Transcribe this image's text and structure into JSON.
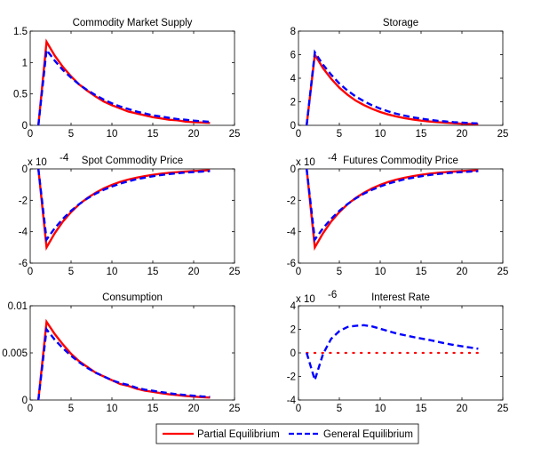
{
  "chart_data": [
    {
      "type": "line",
      "title": "Commodity Market Supply",
      "xlabel": "",
      "ylabel": "",
      "xlim": [
        0,
        25
      ],
      "ylim": [
        0,
        1.5
      ],
      "xticks": [
        "0",
        "5",
        "10",
        "15",
        "20",
        "25"
      ],
      "yticks": [
        "0",
        "0.5",
        "1",
        "1.5"
      ],
      "ytick_values": [
        0,
        0.5,
        1,
        1.5
      ],
      "exponent_label": "",
      "x": [
        1,
        2,
        3,
        4,
        5,
        6,
        7,
        8,
        9,
        10,
        11,
        12,
        13,
        14,
        15,
        16,
        17,
        18,
        19,
        20,
        21,
        22
      ],
      "series": [
        {
          "name": "Partial Equilibrium",
          "values": [
            0,
            1.33,
            1.11,
            0.93,
            0.78,
            0.65,
            0.55,
            0.46,
            0.38,
            0.32,
            0.27,
            0.22,
            0.19,
            0.16,
            0.13,
            0.11,
            0.09,
            0.08,
            0.06,
            0.05,
            0.045,
            0.038
          ]
        },
        {
          "name": "General Equilibrium",
          "values": [
            0,
            1.2,
            1.03,
            0.88,
            0.76,
            0.65,
            0.56,
            0.48,
            0.41,
            0.35,
            0.3,
            0.26,
            0.22,
            0.19,
            0.16,
            0.14,
            0.12,
            0.1,
            0.09,
            0.075,
            0.065,
            0.055
          ]
        }
      ]
    },
    {
      "type": "line",
      "title": "Storage",
      "xlabel": "",
      "ylabel": "",
      "xlim": [
        0,
        25
      ],
      "ylim": [
        0,
        8
      ],
      "xticks": [
        "0",
        "5",
        "10",
        "15",
        "20",
        "25"
      ],
      "yticks": [
        "0",
        "2",
        "4",
        "6",
        "8"
      ],
      "ytick_values": [
        0,
        2,
        4,
        6,
        8
      ],
      "exponent_label": "",
      "x": [
        1,
        2,
        3,
        4,
        5,
        6,
        7,
        8,
        9,
        10,
        11,
        12,
        13,
        14,
        15,
        16,
        17,
        18,
        19,
        20,
        21,
        22
      ],
      "series": [
        {
          "name": "Partial Equilibrium",
          "values": [
            0,
            6.0,
            4.85,
            3.95,
            3.2,
            2.6,
            2.1,
            1.72,
            1.4,
            1.13,
            0.92,
            0.75,
            0.61,
            0.5,
            0.4,
            0.33,
            0.27,
            0.22,
            0.18,
            0.14,
            0.12,
            0.1
          ]
        },
        {
          "name": "General Equilibrium",
          "values": [
            0,
            6.2,
            5.15,
            4.3,
            3.55,
            2.95,
            2.45,
            2.05,
            1.7,
            1.42,
            1.18,
            0.98,
            0.82,
            0.68,
            0.57,
            0.47,
            0.39,
            0.33,
            0.27,
            0.23,
            0.19,
            0.16
          ]
        }
      ]
    },
    {
      "type": "line",
      "title": "Spot Commodity Price",
      "xlabel": "",
      "ylabel": "",
      "xlim": [
        0,
        25
      ],
      "ylim": [
        -6,
        0
      ],
      "xticks": [
        "0",
        "5",
        "10",
        "15",
        "20",
        "25"
      ],
      "yticks": [
        "-6",
        "-4",
        "-2",
        "0"
      ],
      "ytick_values": [
        -6,
        -4,
        -2,
        0
      ],
      "exponent_label": "x 10",
      "exponent_power": "-4",
      "x": [
        1,
        2,
        3,
        4,
        5,
        6,
        7,
        8,
        9,
        10,
        11,
        12,
        13,
        14,
        15,
        16,
        17,
        18,
        19,
        20,
        21,
        22
      ],
      "series": [
        {
          "name": "Partial Equilibrium",
          "values": [
            0,
            -5.0,
            -4.1,
            -3.35,
            -2.75,
            -2.25,
            -1.85,
            -1.52,
            -1.24,
            -1.02,
            -0.83,
            -0.68,
            -0.56,
            -0.46,
            -0.38,
            -0.31,
            -0.25,
            -0.21,
            -0.17,
            -0.14,
            -0.11,
            -0.09
          ]
        },
        {
          "name": "General Equilibrium",
          "values": [
            0,
            -4.5,
            -3.78,
            -3.18,
            -2.67,
            -2.24,
            -1.88,
            -1.58,
            -1.33,
            -1.12,
            -0.94,
            -0.79,
            -0.66,
            -0.56,
            -0.47,
            -0.39,
            -0.33,
            -0.28,
            -0.23,
            -0.2,
            -0.17,
            -0.14
          ]
        }
      ]
    },
    {
      "type": "line",
      "title": "Futures Commodity Price",
      "xlabel": "",
      "ylabel": "",
      "xlim": [
        0,
        25
      ],
      "ylim": [
        -6,
        0
      ],
      "xticks": [
        "0",
        "5",
        "10",
        "15",
        "20",
        "25"
      ],
      "yticks": [
        "-6",
        "-4",
        "-2",
        "0"
      ],
      "ytick_values": [
        -6,
        -4,
        -2,
        0
      ],
      "exponent_label": "x 10",
      "exponent_power": "-4",
      "x": [
        1,
        2,
        3,
        4,
        5,
        6,
        7,
        8,
        9,
        10,
        11,
        12,
        13,
        14,
        15,
        16,
        17,
        18,
        19,
        20,
        21,
        22
      ],
      "series": [
        {
          "name": "Partial Equilibrium",
          "values": [
            0,
            -5.0,
            -4.1,
            -3.35,
            -2.75,
            -2.25,
            -1.85,
            -1.52,
            -1.24,
            -1.02,
            -0.83,
            -0.68,
            -0.56,
            -0.46,
            -0.38,
            -0.31,
            -0.25,
            -0.21,
            -0.17,
            -0.14,
            -0.11,
            -0.09
          ]
        },
        {
          "name": "General Equilibrium",
          "values": [
            0,
            -4.5,
            -3.78,
            -3.18,
            -2.67,
            -2.24,
            -1.88,
            -1.58,
            -1.33,
            -1.12,
            -0.94,
            -0.79,
            -0.66,
            -0.56,
            -0.47,
            -0.39,
            -0.33,
            -0.28,
            -0.23,
            -0.2,
            -0.17,
            -0.14
          ]
        }
      ]
    },
    {
      "type": "line",
      "title": "Consumption",
      "xlabel": "",
      "ylabel": "",
      "xlim": [
        0,
        25
      ],
      "ylim": [
        0,
        0.01
      ],
      "xticks": [
        "0",
        "5",
        "10",
        "15",
        "20",
        "25"
      ],
      "yticks": [
        "0",
        "0.005",
        "0.01"
      ],
      "ytick_values": [
        0,
        0.005,
        0.01
      ],
      "exponent_label": "",
      "x": [
        1,
        2,
        3,
        4,
        5,
        6,
        7,
        8,
        9,
        10,
        11,
        12,
        13,
        14,
        15,
        16,
        17,
        18,
        19,
        20,
        21,
        22
      ],
      "series": [
        {
          "name": "Partial Equilibrium",
          "values": [
            0,
            0.0083,
            0.007,
            0.0059,
            0.0049,
            0.0041,
            0.0035,
            0.0029,
            0.0025,
            0.0021,
            0.0017,
            0.0015,
            0.0012,
            0.001,
            0.00087,
            0.00073,
            0.00061,
            0.00052,
            0.00043,
            0.00036,
            0.0003,
            0.00026
          ]
        },
        {
          "name": "General Equilibrium",
          "values": [
            0,
            0.0075,
            0.0064,
            0.0055,
            0.0047,
            0.004,
            0.0034,
            0.0029,
            0.0025,
            0.0021,
            0.0018,
            0.0016,
            0.0013,
            0.0011,
            0.00098,
            0.00084,
            0.00072,
            0.00061,
            0.00052,
            0.00045,
            0.00038,
            0.00033
          ]
        }
      ]
    },
    {
      "type": "line",
      "title": "Interest Rate",
      "xlabel": "",
      "ylabel": "",
      "xlim": [
        0,
        25
      ],
      "ylim": [
        -4,
        4
      ],
      "xticks": [
        "0",
        "5",
        "10",
        "15",
        "20",
        "25"
      ],
      "yticks": [
        "-4",
        "-2",
        "0",
        "2",
        "4"
      ],
      "ytick_values": [
        -4,
        -2,
        0,
        2,
        4
      ],
      "exponent_label": "x 10",
      "exponent_power": "-6",
      "x": [
        1,
        2,
        3,
        4,
        5,
        6,
        7,
        8,
        9,
        10,
        11,
        12,
        13,
        14,
        15,
        16,
        17,
        18,
        19,
        20,
        21,
        22
      ],
      "series": [
        {
          "name": "Partial Equilibrium",
          "values": [
            0,
            0,
            0,
            0,
            0,
            0,
            0,
            0,
            0,
            0,
            0,
            0,
            0,
            0,
            0,
            0,
            0,
            0,
            0,
            0,
            0,
            0
          ],
          "style": "dotted"
        },
        {
          "name": "General Equilibrium",
          "values": [
            0,
            -2.3,
            -0.1,
            1.2,
            1.85,
            2.2,
            2.3,
            2.35,
            2.25,
            2.05,
            1.85,
            1.65,
            1.5,
            1.35,
            1.22,
            1.1,
            0.95,
            0.8,
            0.67,
            0.56,
            0.46,
            0.35
          ]
        }
      ]
    }
  ],
  "legend": {
    "placement": "bottom-center",
    "entries": [
      {
        "label": "Partial Equilibrium",
        "color": "#ff0000",
        "style": "solid"
      },
      {
        "label": "General Equilibrium",
        "color": "#0000ff",
        "style": "dashed"
      }
    ]
  },
  "colors": {
    "partial": "#ff0000",
    "general": "#0000ff",
    "axis": "#000000"
  }
}
